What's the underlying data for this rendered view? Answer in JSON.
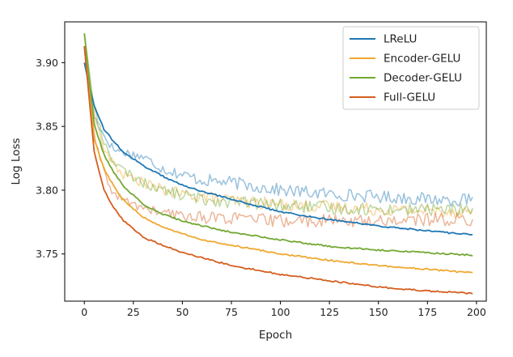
{
  "chart_data": {
    "type": "line",
    "title": "",
    "xlabel": "Epoch",
    "ylabel": "Log Loss",
    "xlim": [
      -10,
      205
    ],
    "ylim": [
      3.713,
      3.932
    ],
    "xticks": [
      0,
      25,
      50,
      75,
      100,
      125,
      150,
      175,
      200
    ],
    "xtick_labels": [
      "0",
      "25",
      "50",
      "75",
      "100",
      "125",
      "150",
      "175",
      "200"
    ],
    "yticks": [
      3.75,
      3.8,
      3.85,
      3.9
    ],
    "ytick_labels": [
      "3.75",
      "3.80",
      "3.85",
      "3.90"
    ],
    "grid": false,
    "legend_position": "top-right",
    "series": [
      {
        "name": "LReLU",
        "color": "#1f77b4",
        "x": [
          0,
          5,
          10,
          15,
          20,
          30,
          40,
          50,
          60,
          75,
          100,
          125,
          150,
          175,
          198
        ],
        "y": [
          3.9,
          3.866,
          3.848,
          3.838,
          3.83,
          3.819,
          3.811,
          3.804,
          3.799,
          3.793,
          3.783,
          3.777,
          3.772,
          3.768,
          3.765
        ],
        "noisy_x": [
          0,
          5,
          10,
          15,
          20,
          30,
          40,
          50,
          60,
          75,
          100,
          125,
          150,
          175,
          198
        ],
        "noisy_y": [
          3.9,
          3.858,
          3.843,
          3.832,
          3.83,
          3.826,
          3.817,
          3.812,
          3.808,
          3.806,
          3.8,
          3.797,
          3.795,
          3.793,
          3.792
        ]
      },
      {
        "name": "Encoder-GELU",
        "color": "#f0a830",
        "x": [
          0,
          5,
          10,
          15,
          20,
          30,
          40,
          50,
          60,
          75,
          100,
          125,
          150,
          175,
          198
        ],
        "y": [
          3.912,
          3.84,
          3.817,
          3.803,
          3.792,
          3.779,
          3.771,
          3.766,
          3.761,
          3.757,
          3.75,
          3.745,
          3.741,
          3.738,
          3.735
        ],
        "noisy_x": [
          0,
          5,
          10,
          15,
          20,
          30,
          40,
          50,
          60,
          75,
          100,
          125,
          150,
          175,
          198
        ],
        "noisy_y": [
          3.912,
          3.86,
          3.832,
          3.82,
          3.812,
          3.806,
          3.8,
          3.797,
          3.795,
          3.792,
          3.789,
          3.787,
          3.785,
          3.784,
          3.783
        ]
      },
      {
        "name": "Decoder-GELU",
        "color": "#72a832",
        "x": [
          0,
          5,
          10,
          15,
          20,
          30,
          40,
          50,
          60,
          75,
          100,
          125,
          150,
          175,
          198
        ],
        "y": [
          3.923,
          3.852,
          3.828,
          3.814,
          3.803,
          3.789,
          3.781,
          3.776,
          3.772,
          3.767,
          3.761,
          3.756,
          3.753,
          3.751,
          3.749
        ],
        "noisy_x": [
          0,
          5,
          10,
          15,
          20,
          30,
          40,
          50,
          60,
          75,
          100,
          125,
          150,
          175,
          198
        ],
        "noisy_y": [
          3.923,
          3.865,
          3.838,
          3.822,
          3.815,
          3.806,
          3.8,
          3.796,
          3.793,
          3.791,
          3.788,
          3.786,
          3.785,
          3.785,
          3.785
        ]
      },
      {
        "name": "Full-GELU",
        "color": "#d55e1f",
        "x": [
          0,
          5,
          10,
          15,
          20,
          30,
          40,
          50,
          60,
          75,
          100,
          125,
          150,
          175,
          198
        ],
        "y": [
          3.913,
          3.83,
          3.8,
          3.786,
          3.776,
          3.763,
          3.757,
          3.751,
          3.747,
          3.741,
          3.734,
          3.729,
          3.724,
          3.721,
          3.719
        ],
        "noisy_x": [
          0,
          5,
          10,
          15,
          20,
          30,
          40,
          50,
          60,
          75,
          100,
          125,
          150,
          175,
          198
        ],
        "noisy_y": [
          3.913,
          3.843,
          3.813,
          3.797,
          3.792,
          3.786,
          3.782,
          3.78,
          3.779,
          3.778,
          3.776,
          3.776,
          3.776,
          3.777,
          3.777
        ]
      }
    ]
  }
}
